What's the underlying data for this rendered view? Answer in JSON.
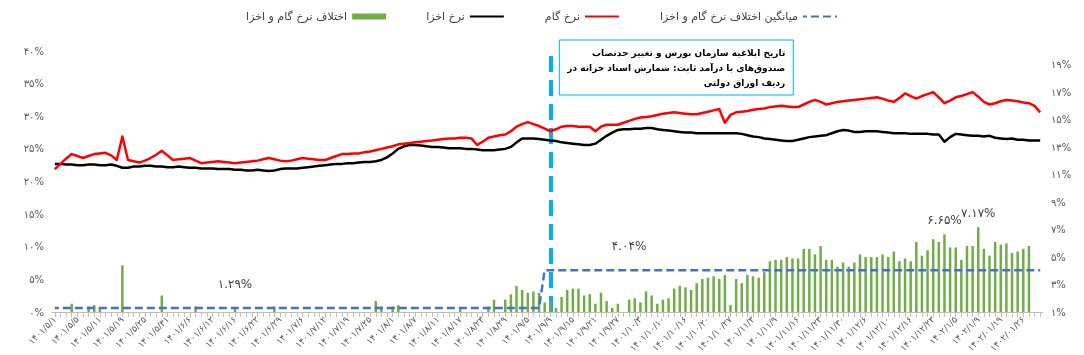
{
  "chart_data": {
    "type": "bar",
    "categories": [
      "۱۴۰۱/۵/۱",
      null,
      null,
      null,
      "۱۴۰۱/۵/۵",
      null,
      null,
      null,
      "۱۴۰۱/۵/۱۱",
      null,
      null,
      null,
      "۱۴۰۱/۵/۱۹",
      null,
      null,
      null,
      "۱۴۰۱/۵/۲۵",
      null,
      null,
      null,
      "۱۴۰۱/۵/۳۱",
      null,
      null,
      null,
      "۱۴۰۱/۶/۶",
      null,
      null,
      null,
      "۱۴۰۱/۶/۱۲",
      null,
      null,
      null,
      "۱۴۰۱/۶/۱۶",
      null,
      null,
      null,
      "۱۴۰۱/۶/۲۲",
      null,
      null,
      null,
      "۱۴۰۱/۶/۲۹",
      null,
      null,
      null,
      "۱۴۰۱/۷/۶",
      null,
      null,
      null,
      "۱۴۰۱/۷/۱۲",
      null,
      null,
      null,
      "۱۴۰۱/۷/۱۹",
      null,
      null,
      null,
      "۱۴۰۱/۷/۲۵",
      null,
      null,
      null,
      "۱۴۰۱/۸/۱",
      null,
      null,
      null,
      "۱۴۰۱/۸/۷",
      null,
      null,
      null,
      "۱۴۰۱/۸/۱۱",
      null,
      null,
      null,
      "۱۴۰۱/۸/۱۷",
      null,
      null,
      null,
      "۱۴۰۱/۸/۲۳",
      null,
      null,
      null,
      "۱۴۰۱/۸/۲۹",
      null,
      null,
      null,
      "۱۴۰۱/۹/۵",
      null,
      null,
      null,
      "۱۴۰۱/۹/۹",
      null,
      null,
      null,
      "۱۴۰۱/۹/۱۵",
      null,
      null,
      null,
      "۱۴۰۱/۹/۲۱",
      null,
      null,
      null,
      "۱۴۰۱/۹/۲۷",
      null,
      null,
      null,
      "۱۴۰۱/۱۰/۳",
      null,
      null,
      null,
      "۱۴۰۱/۱۰/۱۰",
      null,
      null,
      null,
      "۱۴۰۱/۱۰/۱۶",
      null,
      null,
      null,
      "۱۴۰۱/۱۰/۲۰",
      null,
      null,
      null,
      "۱۴۰۱/۱۰/۲۷",
      null,
      null,
      null,
      "۱۴۰۱/۱۱/۳",
      null,
      null,
      null,
      "۱۴۰۱/۱۱/۹",
      null,
      null,
      null,
      "۱۴۰۱/۱۱/۱۶",
      null,
      null,
      null,
      "۱۴۰۱/۱۱/۲۳",
      null,
      null,
      null,
      "۱۴۰۱/۱۱/۳۰",
      null,
      null,
      null,
      "۱۴۰۱/۱۲/۶",
      null,
      null,
      null,
      "۱۴۰۱/۱۲/۱۰",
      null,
      null,
      null,
      "۱۴۰۱/۱۲/۱۶",
      null,
      null,
      null,
      "۱۴۰۱/۱۲/۲۳",
      null,
      null,
      null,
      "۱۴۰۲/۱/۵",
      null,
      null,
      null,
      "۱۴۰۲/۱/۹",
      null,
      null,
      null,
      "۱۴۰۲/۰۱/۱۹",
      null,
      null,
      null,
      "۱۴۰۲/۰۱/۲۶",
      null,
      null,
      null
    ],
    "series": [
      {
        "name": "اختلاف نرخ گام و اخزا",
        "type": "bar",
        "axis": "y2",
        "color": "#70ad47",
        "values": [
          null,
          null,
          null,
          1.6,
          null,
          null,
          1.4,
          1.5,
          1.3,
          null,
          null,
          null,
          4.4,
          null,
          null,
          null,
          null,
          null,
          null,
          2.2,
          null,
          null,
          null,
          null,
          null,
          1.4,
          null,
          null,
          null,
          null,
          null,
          null,
          1.3,
          null,
          null,
          null,
          null,
          null,
          null,
          1.4,
          null,
          null,
          null,
          null,
          null,
          null,
          null,
          null,
          null,
          null,
          null,
          null,
          null,
          null,
          null,
          null,
          null,
          1.8,
          1.4,
          null,
          1.4,
          1.5,
          null,
          null,
          null,
          null,
          null,
          null,
          null,
          null,
          null,
          null,
          1.3,
          null,
          null,
          null,
          null,
          1.4,
          1.9,
          null,
          1.9,
          2.3,
          2.9,
          2.6,
          2.4,
          2.5,
          2.4,
          1.7,
          1.8,
          1.3,
          2.1,
          2.6,
          2.7,
          2.7,
          2.2,
          2.3,
          1.6,
          2.4,
          1.8,
          1.3,
          1.6,
          null,
          1.9,
          2.0,
          1.7,
          2.5,
          2.2,
          1.6,
          1.9,
          2.0,
          2.7,
          2.9,
          2.8,
          2.6,
          3.1,
          3.4,
          3.5,
          3.6,
          3.4,
          3.7,
          1.5,
          3.4,
          3.1,
          3.7,
          3.6,
          3.5,
          3.9,
          4.7,
          4.8,
          4.8,
          5.0,
          4.9,
          4.9,
          5.6,
          5.6,
          5.2,
          5.8,
          4.8,
          4.8,
          4.3,
          4.6,
          4.3,
          4.6,
          5.2,
          5.0,
          5.0,
          5.0,
          5.2,
          5.0,
          5.4,
          4.7,
          4.9,
          4.7,
          6.1,
          5.1,
          5.5,
          6.3,
          6.1,
          6.65,
          5.7,
          5.7,
          4.8,
          5.8,
          5.8,
          7.17,
          5.6,
          5.1,
          6.1,
          5.9,
          6.0,
          5.3,
          5.4,
          5.6,
          5.8,
          null,
          null
        ],
        "value_labels": [
          null,
          null,
          null,
          null,
          null,
          null,
          null,
          null,
          null,
          null,
          null,
          null,
          null,
          null,
          null,
          null,
          null,
          null,
          null,
          null,
          null,
          null,
          null,
          null,
          null,
          null,
          null,
          null,
          null,
          null,
          null,
          null,
          null,
          null,
          null,
          null,
          null,
          null,
          null,
          null,
          null,
          null,
          null,
          null,
          null,
          null,
          null,
          null,
          null,
          null,
          null,
          null,
          null,
          null,
          null,
          null,
          null,
          null,
          null,
          null,
          null,
          null,
          null,
          null,
          null,
          null,
          null,
          null,
          null,
          null,
          null,
          null,
          null,
          null,
          null,
          null,
          null,
          null,
          null,
          null,
          null,
          null,
          null,
          null,
          null,
          null,
          null,
          null,
          null,
          null,
          null,
          null,
          null,
          null,
          null,
          null,
          null,
          null,
          null,
          null,
          null,
          null,
          null,
          null,
          null,
          null,
          null,
          null,
          null,
          null,
          null,
          null,
          null,
          null,
          null,
          null,
          null,
          null,
          null,
          null,
          null,
          null,
          null,
          null,
          null,
          null,
          null,
          null,
          null,
          null,
          null,
          null,
          null,
          null,
          null,
          null,
          null,
          null,
          null,
          null,
          null,
          null,
          null,
          null,
          null,
          null,
          null,
          null,
          null,
          null,
          null,
          null,
          null,
          null,
          null,
          null,
          null,
          null,
          "۶.۶۵%",
          null,
          null,
          null,
          null,
          null,
          "۷.۱۷%",
          null,
          null,
          null,
          null,
          null,
          null,
          null,
          null,
          null,
          null,
          null
        ]
      },
      {
        "name": "نرخ اخزا",
        "type": "line",
        "color": "#000000",
        "values": [
          22.7,
          22.7,
          22.6,
          22.6,
          22.5,
          22.5,
          22.6,
          22.6,
          22.5,
          22.5,
          22.6,
          22.4,
          22.1,
          22.1,
          22.3,
          22.3,
          22.4,
          22.4,
          22.3,
          22.3,
          22.2,
          22.2,
          22.3,
          22.2,
          22.1,
          22.1,
          22.0,
          22.0,
          22.0,
          21.9,
          21.9,
          21.9,
          21.8,
          21.8,
          21.7,
          21.7,
          21.8,
          21.7,
          21.6,
          21.7,
          21.9,
          22.0,
          22.0,
          22.0,
          22.1,
          22.2,
          22.3,
          22.4,
          22.5,
          22.6,
          22.7,
          22.7,
          22.8,
          22.8,
          22.9,
          23.0,
          23.0,
          23.1,
          23.3,
          23.7,
          24.3,
          25.0,
          25.4,
          25.6,
          25.6,
          25.5,
          25.4,
          25.3,
          25.3,
          25.2,
          25.1,
          25.1,
          25.1,
          25.0,
          25.0,
          24.9,
          24.8,
          24.8,
          24.8,
          24.9,
          25.0,
          25.3,
          26.0,
          26.6,
          26.6,
          26.6,
          26.5,
          26.4,
          26.3,
          26.2,
          26.0,
          25.9,
          25.8,
          25.7,
          25.6,
          25.6,
          25.8,
          26.4,
          27.0,
          27.5,
          27.9,
          28.0,
          28.0,
          28.1,
          28.1,
          28.2,
          28.2,
          28.0,
          27.9,
          27.8,
          27.7,
          27.6,
          27.5,
          27.5,
          27.4,
          27.4,
          27.4,
          27.4,
          27.4,
          27.4,
          27.4,
          27.4,
          27.3,
          27.1,
          26.9,
          26.8,
          26.6,
          26.5,
          26.4,
          26.3,
          26.2,
          26.2,
          26.4,
          26.6,
          26.8,
          26.9,
          27.0,
          27.1,
          27.4,
          27.7,
          27.9,
          27.8,
          27.6,
          27.6,
          27.7,
          27.7,
          27.7,
          27.6,
          27.5,
          27.4,
          27.4,
          27.4,
          27.3,
          27.3,
          27.3,
          27.3,
          27.2,
          27.2,
          26.1,
          26.8,
          27.3,
          27.2,
          27.1,
          27.0,
          27.0,
          26.9,
          27.0,
          26.7,
          26.6,
          26.5,
          26.6,
          26.4,
          26.4,
          26.3,
          26.3,
          26.3
        ]
      },
      {
        "name": "نرخ گام",
        "type": "line",
        "color": "#ff0000",
        "values": [
          21.9,
          22.7,
          23.5,
          24.2,
          23.9,
          23.6,
          23.9,
          24.2,
          24.3,
          24.4,
          24.0,
          23.3,
          26.9,
          23.3,
          23.1,
          22.9,
          23.2,
          23.6,
          24.1,
          24.7,
          24.0,
          23.3,
          23.4,
          23.5,
          23.6,
          23.2,
          22.8,
          22.9,
          23.0,
          23.1,
          23.0,
          22.9,
          22.8,
          22.9,
          23.0,
          23.1,
          23.2,
          23.4,
          23.6,
          23.4,
          23.2,
          23.1,
          23.2,
          23.4,
          23.6,
          23.5,
          23.4,
          23.3,
          23.3,
          23.6,
          23.9,
          24.2,
          24.2,
          24.3,
          24.3,
          24.5,
          24.6,
          24.8,
          25.0,
          25.2,
          25.4,
          25.7,
          25.8,
          25.9,
          26.0,
          26.1,
          26.2,
          26.3,
          26.4,
          26.5,
          26.6,
          26.6,
          26.7,
          26.7,
          26.6,
          25.6,
          26.1,
          26.7,
          26.9,
          27.1,
          27.2,
          27.7,
          28.4,
          28.8,
          29.1,
          28.8,
          28.5,
          28.1,
          27.7,
          28.0,
          28.4,
          28.5,
          28.5,
          28.4,
          28.4,
          28.4,
          27.7,
          28.4,
          28.7,
          28.7,
          28.7,
          29.0,
          29.3,
          29.6,
          29.8,
          29.9,
          30.0,
          30.2,
          30.4,
          30.5,
          30.6,
          30.5,
          30.4,
          30.3,
          30.3,
          30.5,
          30.7,
          30.9,
          31.1,
          29.0,
          30.2,
          30.6,
          30.7,
          30.8,
          31.0,
          31.1,
          31.2,
          31.4,
          31.5,
          31.6,
          31.5,
          31.4,
          31.4,
          31.8,
          32.2,
          32.5,
          32.2,
          31.8,
          32.0,
          32.2,
          32.3,
          32.4,
          32.5,
          32.6,
          32.7,
          32.8,
          32.9,
          32.7,
          32.4,
          32.2,
          32.8,
          33.5,
          33.1,
          32.7,
          33.1,
          33.4,
          33.7,
          32.9,
          32.0,
          32.4,
          32.9,
          33.1,
          33.4,
          33.7,
          33.0,
          32.2,
          31.8,
          32.0,
          32.3,
          32.5,
          32.4,
          32.3,
          32.1,
          32.0,
          31.6,
          30.6
        ]
      },
      {
        "name": "میانگین اختلاف نرخ گام و اخزا",
        "type": "line",
        "axis": "y2",
        "color": "#4472c4",
        "line_style": "dashed",
        "values": [
          1.29,
          1.29,
          1.29,
          1.29,
          1.29,
          1.29,
          1.29,
          1.29,
          1.29,
          1.29,
          1.29,
          1.29,
          1.29,
          1.29,
          1.29,
          1.29,
          1.29,
          1.29,
          1.29,
          1.29,
          1.29,
          1.29,
          1.29,
          1.29,
          1.29,
          1.29,
          1.29,
          1.29,
          1.29,
          1.29,
          1.29,
          1.29,
          1.29,
          1.29,
          1.29,
          1.29,
          1.29,
          1.29,
          1.29,
          1.29,
          1.29,
          1.29,
          1.29,
          1.29,
          1.29,
          1.29,
          1.29,
          1.29,
          1.29,
          1.29,
          1.29,
          1.29,
          1.29,
          1.29,
          1.29,
          1.29,
          1.29,
          1.29,
          1.29,
          1.29,
          1.29,
          1.29,
          1.29,
          1.29,
          1.29,
          1.29,
          1.29,
          1.29,
          1.29,
          1.29,
          1.29,
          1.29,
          1.29,
          1.29,
          1.29,
          1.29,
          1.29,
          1.29,
          1.29,
          1.29,
          1.29,
          1.29,
          1.29,
          1.29,
          1.29,
          1.29,
          1.29,
          4.04,
          4.04,
          4.04,
          4.04,
          4.04,
          4.04,
          4.04,
          4.04,
          4.04,
          4.04,
          4.04,
          4.04,
          4.04,
          4.04,
          4.04,
          4.04,
          4.04,
          4.04,
          4.04,
          4.04,
          4.04,
          4.04,
          4.04,
          4.04,
          4.04,
          4.04,
          4.04,
          4.04,
          4.04,
          4.04,
          4.04,
          4.04,
          4.04,
          4.04,
          4.04,
          4.04,
          4.04,
          4.04,
          4.04,
          4.04,
          4.04,
          4.04,
          4.04,
          4.04,
          4.04,
          4.04,
          4.04,
          4.04,
          4.04,
          4.04,
          4.04,
          4.04,
          4.04,
          4.04,
          4.04,
          4.04,
          4.04,
          4.04,
          4.04,
          4.04,
          4.04,
          4.04,
          4.04,
          4.04,
          4.04,
          4.04,
          4.04,
          4.04,
          4.04,
          4.04,
          4.04,
          4.04,
          4.04,
          4.04,
          4.04,
          4.04,
          4.04,
          4.04,
          4.04,
          4.04,
          4.04,
          4.04,
          4.04,
          4.04,
          4.04,
          4.04,
          4.04,
          4.04,
          4.04
        ],
        "value_labels": [
          null,
          null,
          null,
          null,
          null,
          null,
          null,
          null,
          null,
          null,
          null,
          null,
          null,
          null,
          null,
          null,
          null,
          null,
          null,
          null,
          null,
          null,
          null,
          null,
          null,
          null,
          null,
          null,
          null,
          null,
          null,
          null,
          "۱.۲۹%",
          null,
          null,
          null,
          null,
          null,
          null,
          null,
          null,
          null,
          null,
          null,
          null,
          null,
          null,
          null,
          null,
          null,
          null,
          null,
          null,
          null,
          null,
          null,
          null,
          null,
          null,
          null,
          null,
          null,
          null,
          null,
          null,
          null,
          null,
          null,
          null,
          null,
          null,
          null,
          null,
          null,
          null,
          null,
          null,
          null,
          null,
          null,
          null,
          null,
          null,
          null,
          null,
          null,
          null,
          null,
          null,
          null,
          null,
          null,
          null,
          null,
          null,
          null,
          null,
          null,
          null,
          null,
          null,
          null,
          "۴.۰۴%",
          null,
          null,
          null,
          null,
          null,
          null,
          null,
          null,
          null,
          null,
          null,
          null,
          null,
          null,
          null,
          null,
          null,
          null,
          null,
          null,
          null,
          null,
          null,
          null,
          null,
          null,
          null,
          null,
          null,
          null,
          null,
          null,
          null,
          null,
          null,
          null,
          null,
          null,
          null,
          null,
          null,
          null,
          null,
          null,
          null,
          null,
          null,
          null,
          null,
          null,
          null,
          null,
          null,
          null,
          null,
          null,
          null,
          null,
          null,
          null,
          null,
          null,
          null,
          null,
          null,
          null,
          null,
          null,
          null,
          null,
          null,
          null,
          null
        ]
      }
    ],
    "ylim": [
      0,
      40
    ],
    "yticks": [
      {
        "value": 0,
        "label": "۰%"
      },
      {
        "value": 5,
        "label": "۵%"
      },
      {
        "value": 10,
        "label": "۱۰%"
      },
      {
        "value": 15,
        "label": "۱۵%"
      },
      {
        "value": 20,
        "label": "۲۰%"
      },
      {
        "value": 25,
        "label": "۲۵%"
      },
      {
        "value": 30,
        "label": "۳۰%"
      },
      {
        "value": 35,
        "label": "۳۵%"
      },
      {
        "value": 40,
        "label": "۴۰%"
      }
    ],
    "y2lim": [
      1,
      20
    ],
    "y2ticks": [
      {
        "value": 1,
        "label": "۱%"
      },
      {
        "value": 3,
        "label": "۳%"
      },
      {
        "value": 5,
        "label": "۵%"
      },
      {
        "value": 7,
        "label": "۷%"
      },
      {
        "value": 9,
        "label": "۹%"
      },
      {
        "value": 11,
        "label": "۱۱%"
      },
      {
        "value": 13,
        "label": "۱۳%"
      },
      {
        "value": 15,
        "label": "۱۵%"
      },
      {
        "value": 17,
        "label": "۱۷%"
      },
      {
        "value": 19,
        "label": "۱۹%"
      }
    ],
    "ref_lines": [
      {
        "axis": "x",
        "value": "۱۴۰۱/۹/۹",
        "label": "تاریخ ابلاغیه سازمان بورس و تغییر حدنصاب صندوق‌های با درآمد ثابت: شمارش اسناد خزانه در ردیف اوراق دولتی",
        "color": "#00b0f0",
        "line_style": "dashed"
      }
    ],
    "legend": "top",
    "grid": false,
    "marker": "none"
  }
}
